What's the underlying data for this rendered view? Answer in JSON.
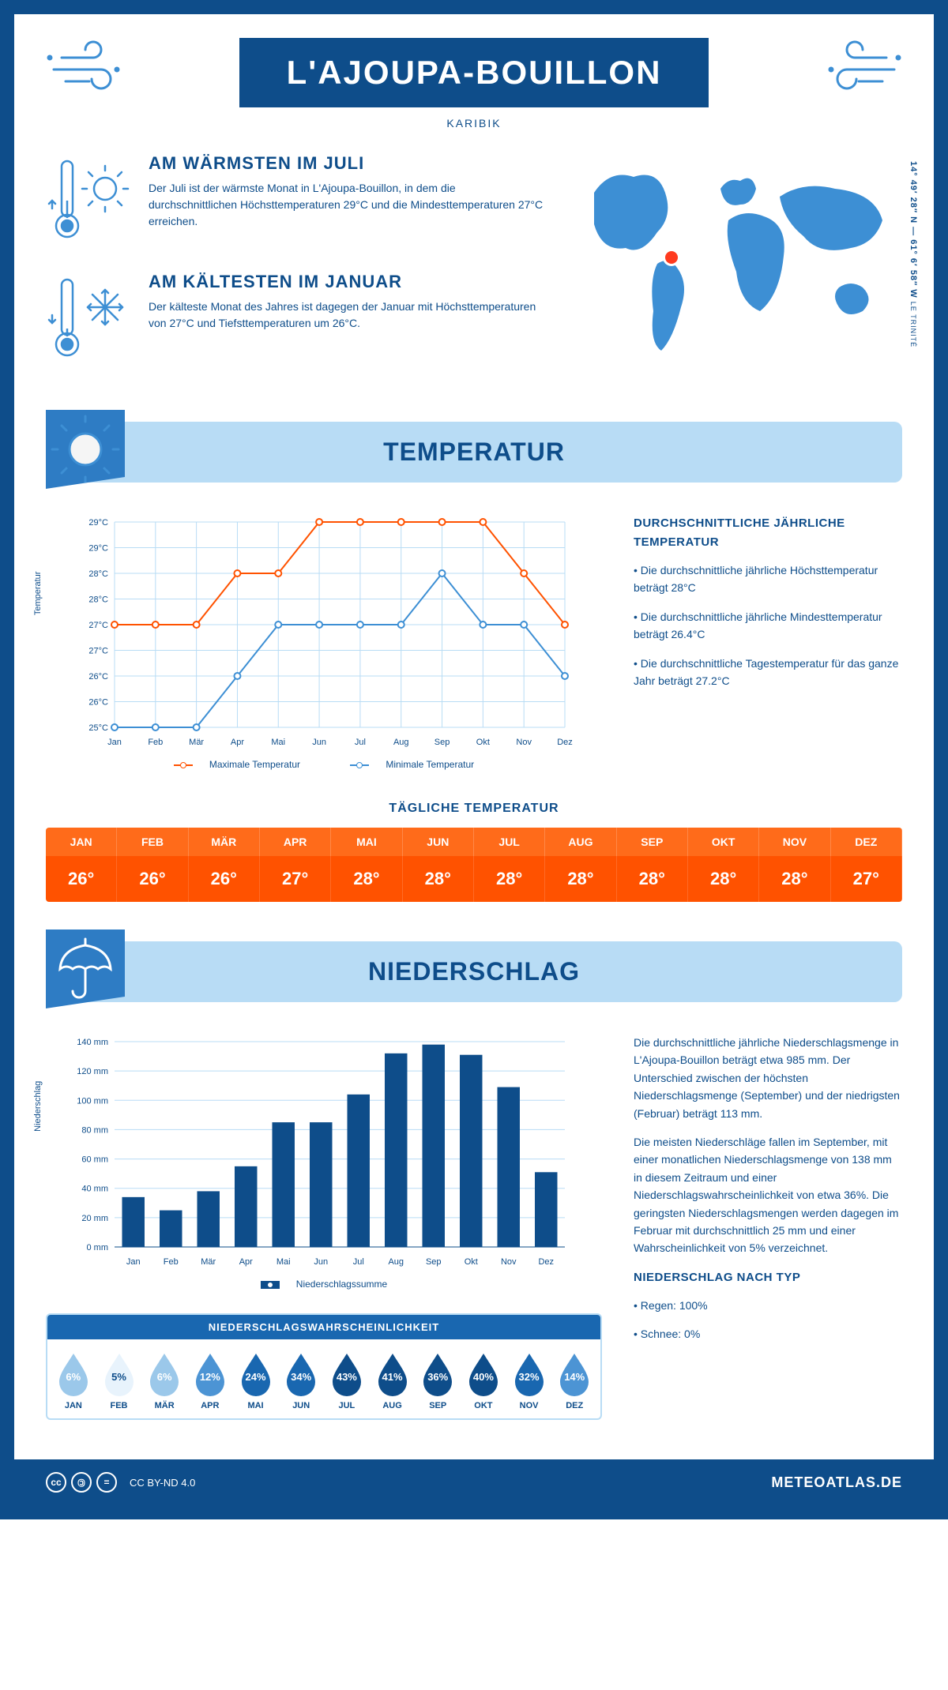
{
  "header": {
    "title": "L'AJOUPA-BOUILLON",
    "subtitle": "KARIBIK"
  },
  "coords": {
    "main": "14° 49′ 28″ N — 61° 6′ 58″ W",
    "sub": "LE TRINITÉ"
  },
  "warmest": {
    "title": "AM WÄRMSTEN IM JULI",
    "text": "Der Juli ist der wärmste Monat in L'Ajoupa-Bouillon, in dem die durchschnittlichen Höchsttemperaturen 29°C und die Mindesttemperaturen 27°C erreichen."
  },
  "coldest": {
    "title": "AM KÄLTESTEN IM JANUAR",
    "text": "Der kälteste Monat des Jahres ist dagegen der Januar mit Höchsttemperaturen von 27°C und Tiefsttemperaturen um 26°C."
  },
  "months": [
    "Jan",
    "Feb",
    "Mär",
    "Apr",
    "Mai",
    "Jun",
    "Jul",
    "Aug",
    "Sep",
    "Okt",
    "Nov",
    "Dez"
  ],
  "months_upper": [
    "JAN",
    "FEB",
    "MÄR",
    "APR",
    "MAI",
    "JUN",
    "JUL",
    "AUG",
    "SEP",
    "OKT",
    "NOV",
    "DEZ"
  ],
  "temperature": {
    "section_title": "TEMPERATUR",
    "y_label": "Temperatur",
    "ylim": [
      25,
      29
    ],
    "ytick_step": 0.5,
    "y_ticks": [
      "25°C",
      "26°C",
      "26°C",
      "27°C",
      "27°C",
      "28°C",
      "28°C",
      "29°C",
      "29°C"
    ],
    "max_series": [
      27,
      27,
      27,
      28,
      28,
      29,
      29,
      29,
      29,
      29,
      28,
      27
    ],
    "min_series": [
      25,
      25,
      25,
      26,
      27,
      27,
      27,
      27,
      28,
      27,
      27,
      26
    ],
    "max_color": "#ff5200",
    "min_color": "#3d8fd4",
    "grid_color": "#b8dcf5",
    "legend_max": "Maximale Temperatur",
    "legend_min": "Minimale Temperatur",
    "side_title": "DURCHSCHNITTLICHE JÄHRLICHE TEMPERATUR",
    "side_bullets": [
      "• Die durchschnittliche jährliche Höchsttemperatur beträgt 28°C",
      "• Die durchschnittliche jährliche Mindesttemperatur beträgt 26.4°C",
      "• Die durchschnittliche Tagestemperatur für das ganze Jahr beträgt 27.2°C"
    ],
    "daily_title": "TÄGLICHE TEMPERATUR",
    "daily_values": [
      "26°",
      "26°",
      "26°",
      "27°",
      "28°",
      "28°",
      "28°",
      "28°",
      "28°",
      "28°",
      "28°",
      "27°"
    ],
    "daily_head_bg": "#ff6b1a",
    "daily_val_bg": "#ff5200"
  },
  "precipitation": {
    "section_title": "NIEDERSCHLAG",
    "y_label": "Niederschlag",
    "ylim": [
      0,
      140
    ],
    "ytick_step": 20,
    "values": [
      34,
      25,
      38,
      55,
      85,
      85,
      104,
      132,
      138,
      131,
      109,
      51
    ],
    "bar_color": "#0e4d8a",
    "grid_color": "#b8dcf5",
    "legend": "Niederschlagssumme",
    "side_p1": "Die durchschnittliche jährliche Niederschlagsmenge in L'Ajoupa-Bouillon beträgt etwa 985 mm. Der Unterschied zwischen der höchsten Niederschlagsmenge (September) und der niedrigsten (Februar) beträgt 113 mm.",
    "side_p2": "Die meisten Niederschläge fallen im September, mit einer monatlichen Niederschlagsmenge von 138 mm in diesem Zeitraum und einer Niederschlagswahrscheinlichkeit von etwa 36%. Die geringsten Niederschlagsmengen werden dagegen im Februar mit durchschnittlich 25 mm und einer Wahrscheinlichkeit von 5% verzeichnet.",
    "type_title": "NIEDERSCHLAG NACH TYP",
    "type_bullets": [
      "• Regen: 100%",
      "• Schnee: 0%"
    ],
    "prob_title": "NIEDERSCHLAGSWAHRSCHEINLICHKEIT",
    "prob_values": [
      6,
      5,
      6,
      12,
      24,
      34,
      43,
      41,
      36,
      40,
      32,
      14
    ],
    "drop_colors": {
      "lightest": "#e8f3fc",
      "light": "#9bc8ea",
      "mid": "#4c94d4",
      "dark": "#1967b0",
      "darkest": "#0e4d8a"
    }
  },
  "footer": {
    "license": "CC BY-ND 4.0",
    "brand": "METEOATLAS.DE"
  },
  "colors": {
    "primary": "#0e4d8a",
    "light_blue": "#b8dcf5",
    "accent_blue": "#3d8fd4",
    "orange": "#ff5200"
  }
}
